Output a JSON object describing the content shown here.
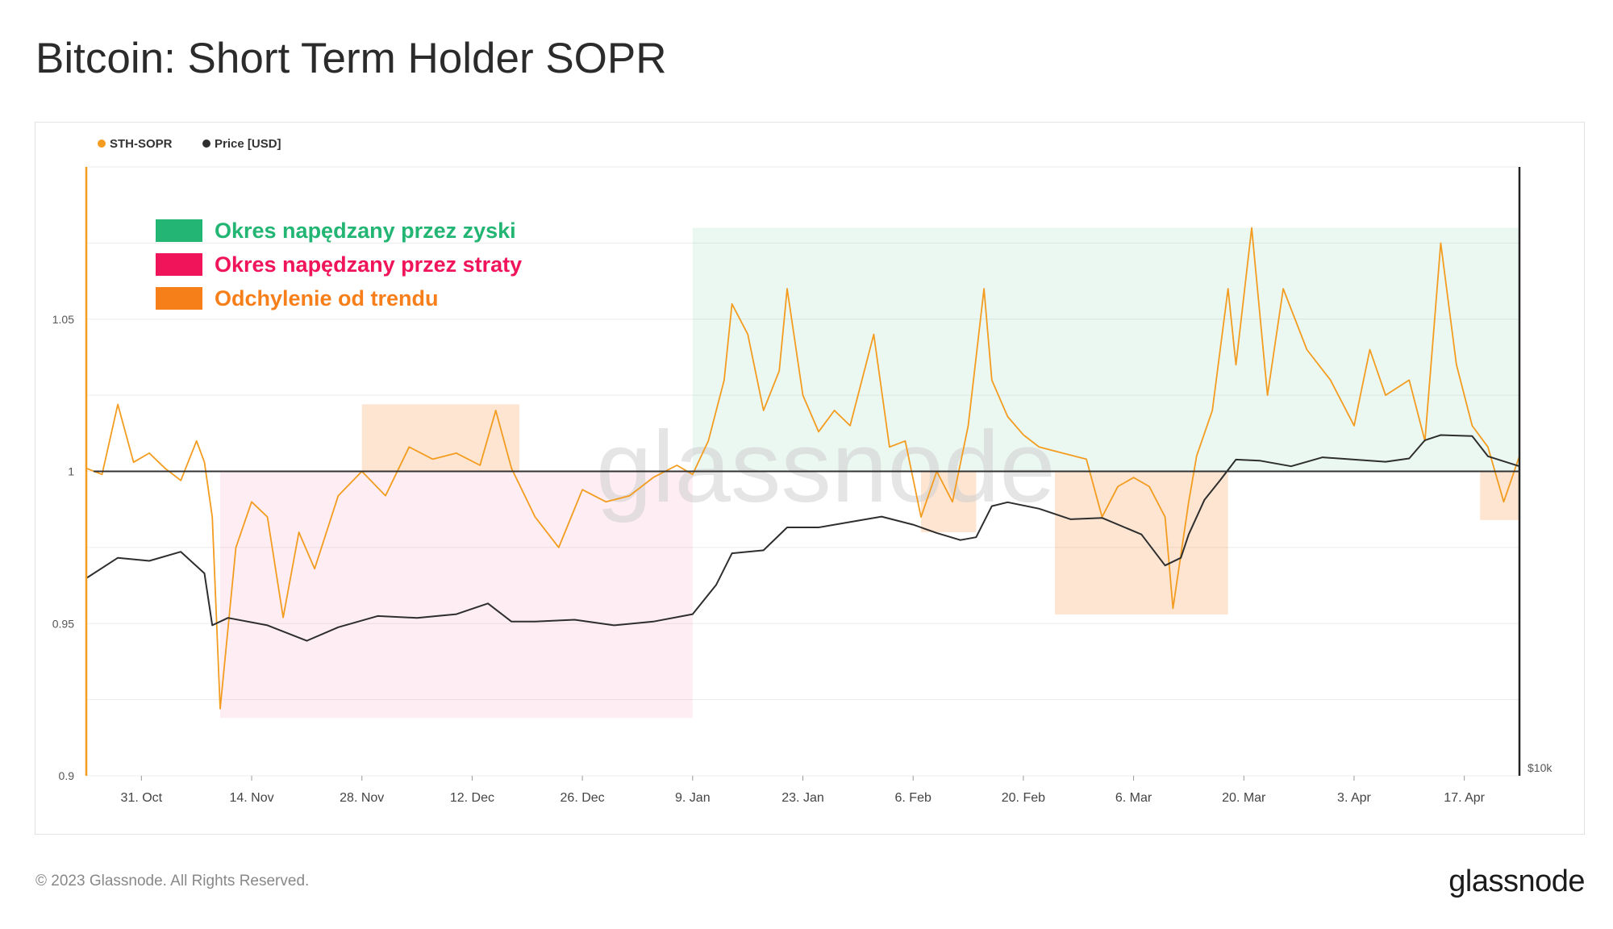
{
  "title": "Bitcoin: Short Term Holder SOPR",
  "footer": {
    "copyright": "© 2023 Glassnode. All Rights Reserved.",
    "brand": "glassnode"
  },
  "watermark": "glassnode",
  "colors": {
    "sopr": "#f39c1f",
    "price": "#2e2e2e",
    "profit": "#22b573",
    "loss": "#f0145a",
    "deviation": "#f77f1a",
    "axis_left": "#f39c1f"
  },
  "annotation_legend": [
    {
      "label": "Okres napędzany przez zyski",
      "color": "#22b573"
    },
    {
      "label": "Okres napędzany przez straty",
      "color": "#f0145a"
    },
    {
      "label": "Odchylenie od trendu",
      "color": "#f77f1a"
    }
  ],
  "chart_data": {
    "type": "line",
    "title": "Bitcoin: Short Term Holder SOPR",
    "x_range": [
      "2022-10-24",
      "2023-04-24"
    ],
    "x_ticks": [
      "31. Oct",
      "14. Nov",
      "28. Nov",
      "12. Dec",
      "26. Dec",
      "9. Jan",
      "23. Jan",
      "6. Feb",
      "20. Feb",
      "6. Mar",
      "20. Mar",
      "3. Apr",
      "17. Apr"
    ],
    "y_left": {
      "ticks": [
        "1.05",
        "1",
        "0.95",
        "0.9"
      ],
      "range": [
        0.9,
        1.1
      ]
    },
    "y_right": {
      "ticks": [
        "$10k"
      ],
      "scale": "log"
    },
    "reference_line": 1.0,
    "legend": [
      {
        "name": "STH-SOPR",
        "color": "#f39c1f"
      },
      {
        "name": "Price [USD]",
        "color": "#2e2e2e"
      }
    ],
    "legend_position": "top-left",
    "grid": true,
    "series": [
      {
        "name": "STH-SOPR",
        "x": [
          "2022-10-24",
          "2022-10-26",
          "2022-10-28",
          "2022-10-30",
          "2022-11-01",
          "2022-11-03",
          "2022-11-05",
          "2022-11-07",
          "2022-11-08",
          "2022-11-09",
          "2022-11-10",
          "2022-11-12",
          "2022-11-14",
          "2022-11-16",
          "2022-11-18",
          "2022-11-20",
          "2022-11-22",
          "2022-11-25",
          "2022-11-28",
          "2022-12-01",
          "2022-12-04",
          "2022-12-07",
          "2022-12-10",
          "2022-12-13",
          "2022-12-15",
          "2022-12-17",
          "2022-12-20",
          "2022-12-23",
          "2022-12-26",
          "2022-12-29",
          "2023-01-01",
          "2023-01-04",
          "2023-01-07",
          "2023-01-09",
          "2023-01-11",
          "2023-01-13",
          "2023-01-14",
          "2023-01-16",
          "2023-01-18",
          "2023-01-20",
          "2023-01-21",
          "2023-01-23",
          "2023-01-25",
          "2023-01-27",
          "2023-01-29",
          "2023-02-01",
          "2023-02-03",
          "2023-02-05",
          "2023-02-07",
          "2023-02-09",
          "2023-02-11",
          "2023-02-13",
          "2023-02-15",
          "2023-02-16",
          "2023-02-18",
          "2023-02-20",
          "2023-02-22",
          "2023-02-25",
          "2023-02-28",
          "2023-03-02",
          "2023-03-04",
          "2023-03-06",
          "2023-03-08",
          "2023-03-10",
          "2023-03-11",
          "2023-03-13",
          "2023-03-14",
          "2023-03-16",
          "2023-03-18",
          "2023-03-19",
          "2023-03-21",
          "2023-03-23",
          "2023-03-25",
          "2023-03-28",
          "2023-03-31",
          "2023-04-03",
          "2023-04-05",
          "2023-04-07",
          "2023-04-10",
          "2023-04-12",
          "2023-04-14",
          "2023-04-16",
          "2023-04-18",
          "2023-04-20",
          "2023-04-22",
          "2023-04-24"
        ],
        "values": [
          1.001,
          0.999,
          1.022,
          1.003,
          1.006,
          1.001,
          0.997,
          1.01,
          1.003,
          0.985,
          0.922,
          0.975,
          0.99,
          0.985,
          0.952,
          0.98,
          0.968,
          0.992,
          1.0,
          0.992,
          1.008,
          1.004,
          1.006,
          1.002,
          1.02,
          1.001,
          0.985,
          0.975,
          0.994,
          0.99,
          0.992,
          0.998,
          1.002,
          0.999,
          1.01,
          1.03,
          1.055,
          1.045,
          1.02,
          1.033,
          1.06,
          1.025,
          1.013,
          1.02,
          1.015,
          1.045,
          1.008,
          1.01,
          0.985,
          1.0,
          0.99,
          1.015,
          1.06,
          1.03,
          1.018,
          1.012,
          1.008,
          1.006,
          1.004,
          0.985,
          0.995,
          0.998,
          0.995,
          0.985,
          0.955,
          0.99,
          1.005,
          1.02,
          1.06,
          1.035,
          1.08,
          1.025,
          1.06,
          1.04,
          1.03,
          1.015,
          1.04,
          1.025,
          1.03,
          1.01,
          1.075,
          1.035,
          1.015,
          1.008,
          0.99,
          1.005
        ]
      },
      {
        "name": "Price [USD]",
        "x": [
          "2022-10-24",
          "2022-10-28",
          "2022-11-01",
          "2022-11-05",
          "2022-11-08",
          "2022-11-09",
          "2022-11-11",
          "2022-11-16",
          "2022-11-21",
          "2022-11-25",
          "2022-11-30",
          "2022-12-05",
          "2022-12-10",
          "2022-12-14",
          "2022-12-17",
          "2022-12-20",
          "2022-12-25",
          "2022-12-30",
          "2023-01-04",
          "2023-01-09",
          "2023-01-12",
          "2023-01-14",
          "2023-01-18",
          "2023-01-21",
          "2023-01-25",
          "2023-01-30",
          "2023-02-02",
          "2023-02-06",
          "2023-02-09",
          "2023-02-12",
          "2023-02-14",
          "2023-02-16",
          "2023-02-18",
          "2023-02-22",
          "2023-02-26",
          "2023-03-02",
          "2023-03-07",
          "2023-03-10",
          "2023-03-12",
          "2023-03-13",
          "2023-03-15",
          "2023-03-17",
          "2023-03-19",
          "2023-03-22",
          "2023-03-26",
          "2023-03-30",
          "2023-04-03",
          "2023-04-07",
          "2023-04-10",
          "2023-04-12",
          "2023-04-14",
          "2023-04-18",
          "2023-04-20",
          "2023-04-24"
        ],
        "values": [
          19300,
          20600,
          20400,
          21000,
          19600,
          16600,
          17000,
          16600,
          15800,
          16500,
          17100,
          17000,
          17200,
          17800,
          16800,
          16800,
          16900,
          16600,
          16800,
          17200,
          18900,
          20900,
          21100,
          22700,
          22700,
          23200,
          23500,
          22900,
          22300,
          21800,
          22000,
          24300,
          24600,
          24100,
          23300,
          23400,
          22200,
          20100,
          20600,
          22200,
          24800,
          26400,
          28200,
          28100,
          27600,
          28400,
          28200,
          28000,
          28300,
          30000,
          30500,
          30400,
          28500,
          27600
        ]
      }
    ],
    "shaded_regions": [
      {
        "label": "Okres napędzany przez zyski",
        "x": [
          "2023-01-09",
          "2023-04-24"
        ]
      },
      {
        "label": "Okres napędzany przez straty",
        "x": [
          "2022-11-10",
          "2023-01-09"
        ]
      },
      {
        "label": "Odchylenie od trendu",
        "x": [
          "2022-11-28",
          "2022-12-18"
        ]
      },
      {
        "label": "Odchylenie od trendu",
        "x": [
          "2023-02-07",
          "2023-02-14"
        ]
      },
      {
        "label": "Odchylenie od trendu",
        "x": [
          "2023-02-24",
          "2023-03-18"
        ]
      },
      {
        "label": "Odchylenie od trendu",
        "x": [
          "2023-04-19",
          "2023-04-24"
        ]
      }
    ]
  }
}
